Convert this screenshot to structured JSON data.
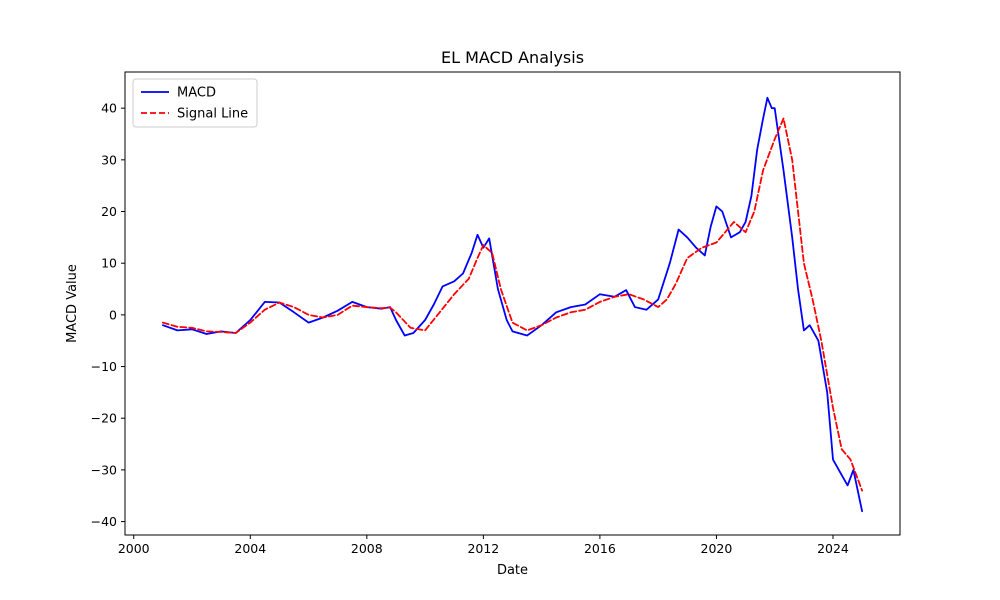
{
  "chart_data": {
    "type": "line",
    "title": "EL MACD Analysis",
    "xlabel": "Date",
    "ylabel": "MACD Value",
    "xlim": [
      1999.7,
      2026.3
    ],
    "ylim": [
      -42.6,
      47.0
    ],
    "x_ticks": [
      2000,
      2004,
      2008,
      2012,
      2016,
      2020,
      2024
    ],
    "x_tick_labels": [
      "2000",
      "2004",
      "2008",
      "2012",
      "2016",
      "2020",
      "2024"
    ],
    "y_ticks": [
      -40,
      -30,
      -20,
      -10,
      0,
      10,
      20,
      30,
      40
    ],
    "y_tick_labels": [
      "−40",
      "−30",
      "−20",
      "−10",
      "0",
      "10",
      "20",
      "30",
      "40"
    ],
    "grid": false,
    "legend": {
      "position": "top-left"
    },
    "series": [
      {
        "name": "MACD",
        "color": "#0000ff",
        "style": "solid",
        "x": [
          2001.0,
          2001.5,
          2002.0,
          2002.5,
          2003.0,
          2003.5,
          2004.0,
          2004.5,
          2005.0,
          2005.5,
          2006.0,
          2006.5,
          2007.0,
          2007.5,
          2008.0,
          2008.5,
          2008.8,
          2009.0,
          2009.3,
          2009.6,
          2010.0,
          2010.3,
          2010.6,
          2011.0,
          2011.3,
          2011.6,
          2011.8,
          2012.0,
          2012.2,
          2012.5,
          2012.8,
          2013.0,
          2013.5,
          2014.0,
          2014.5,
          2015.0,
          2015.5,
          2016.0,
          2016.5,
          2016.9,
          2017.2,
          2017.6,
          2018.0,
          2018.4,
          2018.7,
          2019.0,
          2019.3,
          2019.6,
          2019.8,
          2020.0,
          2020.2,
          2020.5,
          2020.8,
          2021.0,
          2021.2,
          2021.4,
          2021.6,
          2021.75,
          2021.9,
          2022.0,
          2022.3,
          2022.6,
          2022.8,
          2023.0,
          2023.2,
          2023.5,
          2023.8,
          2024.0,
          2024.3,
          2024.5,
          2024.7,
          2025.0
        ],
        "y": [
          -2,
          -3,
          -2.8,
          -3.7,
          -3.2,
          -3.5,
          -1,
          2.5,
          2.4,
          0.5,
          -1.5,
          -0.5,
          0.8,
          2.5,
          1.5,
          1.2,
          1.5,
          -1,
          -4,
          -3.5,
          -1,
          2,
          5.5,
          6.5,
          8,
          12,
          15.5,
          13,
          14.8,
          5,
          -1,
          -3.2,
          -4,
          -2,
          0.5,
          1.5,
          2,
          4,
          3.5,
          4.8,
          1.5,
          1,
          3,
          10,
          16.5,
          15,
          13,
          11.5,
          17,
          21,
          20,
          15,
          16,
          18,
          23,
          32,
          38,
          42,
          40,
          40,
          28,
          15,
          5,
          -3,
          -2,
          -5,
          -15,
          -28,
          -31,
          -33,
          -30,
          -38
        ]
      },
      {
        "name": "Signal Line",
        "color": "#ff0000",
        "style": "dashed",
        "x": [
          2001.0,
          2001.5,
          2002.0,
          2002.5,
          2003.0,
          2003.5,
          2004.0,
          2004.5,
          2005.0,
          2005.5,
          2006.0,
          2006.5,
          2007.0,
          2007.5,
          2008.0,
          2008.5,
          2008.8,
          2009.0,
          2009.5,
          2010.0,
          2010.5,
          2011.0,
          2011.5,
          2011.8,
          2012.0,
          2012.3,
          2012.6,
          2013.0,
          2013.5,
          2014.0,
          2014.5,
          2015.0,
          2015.5,
          2016.0,
          2016.5,
          2017.0,
          2017.5,
          2018.0,
          2018.3,
          2018.6,
          2019.0,
          2019.5,
          2020.0,
          2020.3,
          2020.6,
          2021.0,
          2021.3,
          2021.6,
          2022.0,
          2022.3,
          2022.6,
          2023.0,
          2023.3,
          2023.6,
          2024.0,
          2024.3,
          2024.6,
          2025.0
        ],
        "y": [
          -1.5,
          -2.3,
          -2.5,
          -3.2,
          -3.3,
          -3.5,
          -1.5,
          1,
          2.4,
          1.5,
          0,
          -0.5,
          0,
          1.8,
          1.5,
          1.3,
          1.4,
          0.5,
          -2.5,
          -3,
          0.5,
          4,
          7,
          11,
          13.5,
          12,
          5,
          -1.5,
          -3,
          -2,
          -0.5,
          0.5,
          1,
          2.5,
          3.5,
          4,
          3,
          1.5,
          3,
          6,
          11,
          13,
          14,
          16,
          18,
          16,
          20,
          28,
          34,
          38,
          30,
          10,
          3,
          -5,
          -18,
          -26,
          -28,
          -34
        ]
      }
    ]
  }
}
